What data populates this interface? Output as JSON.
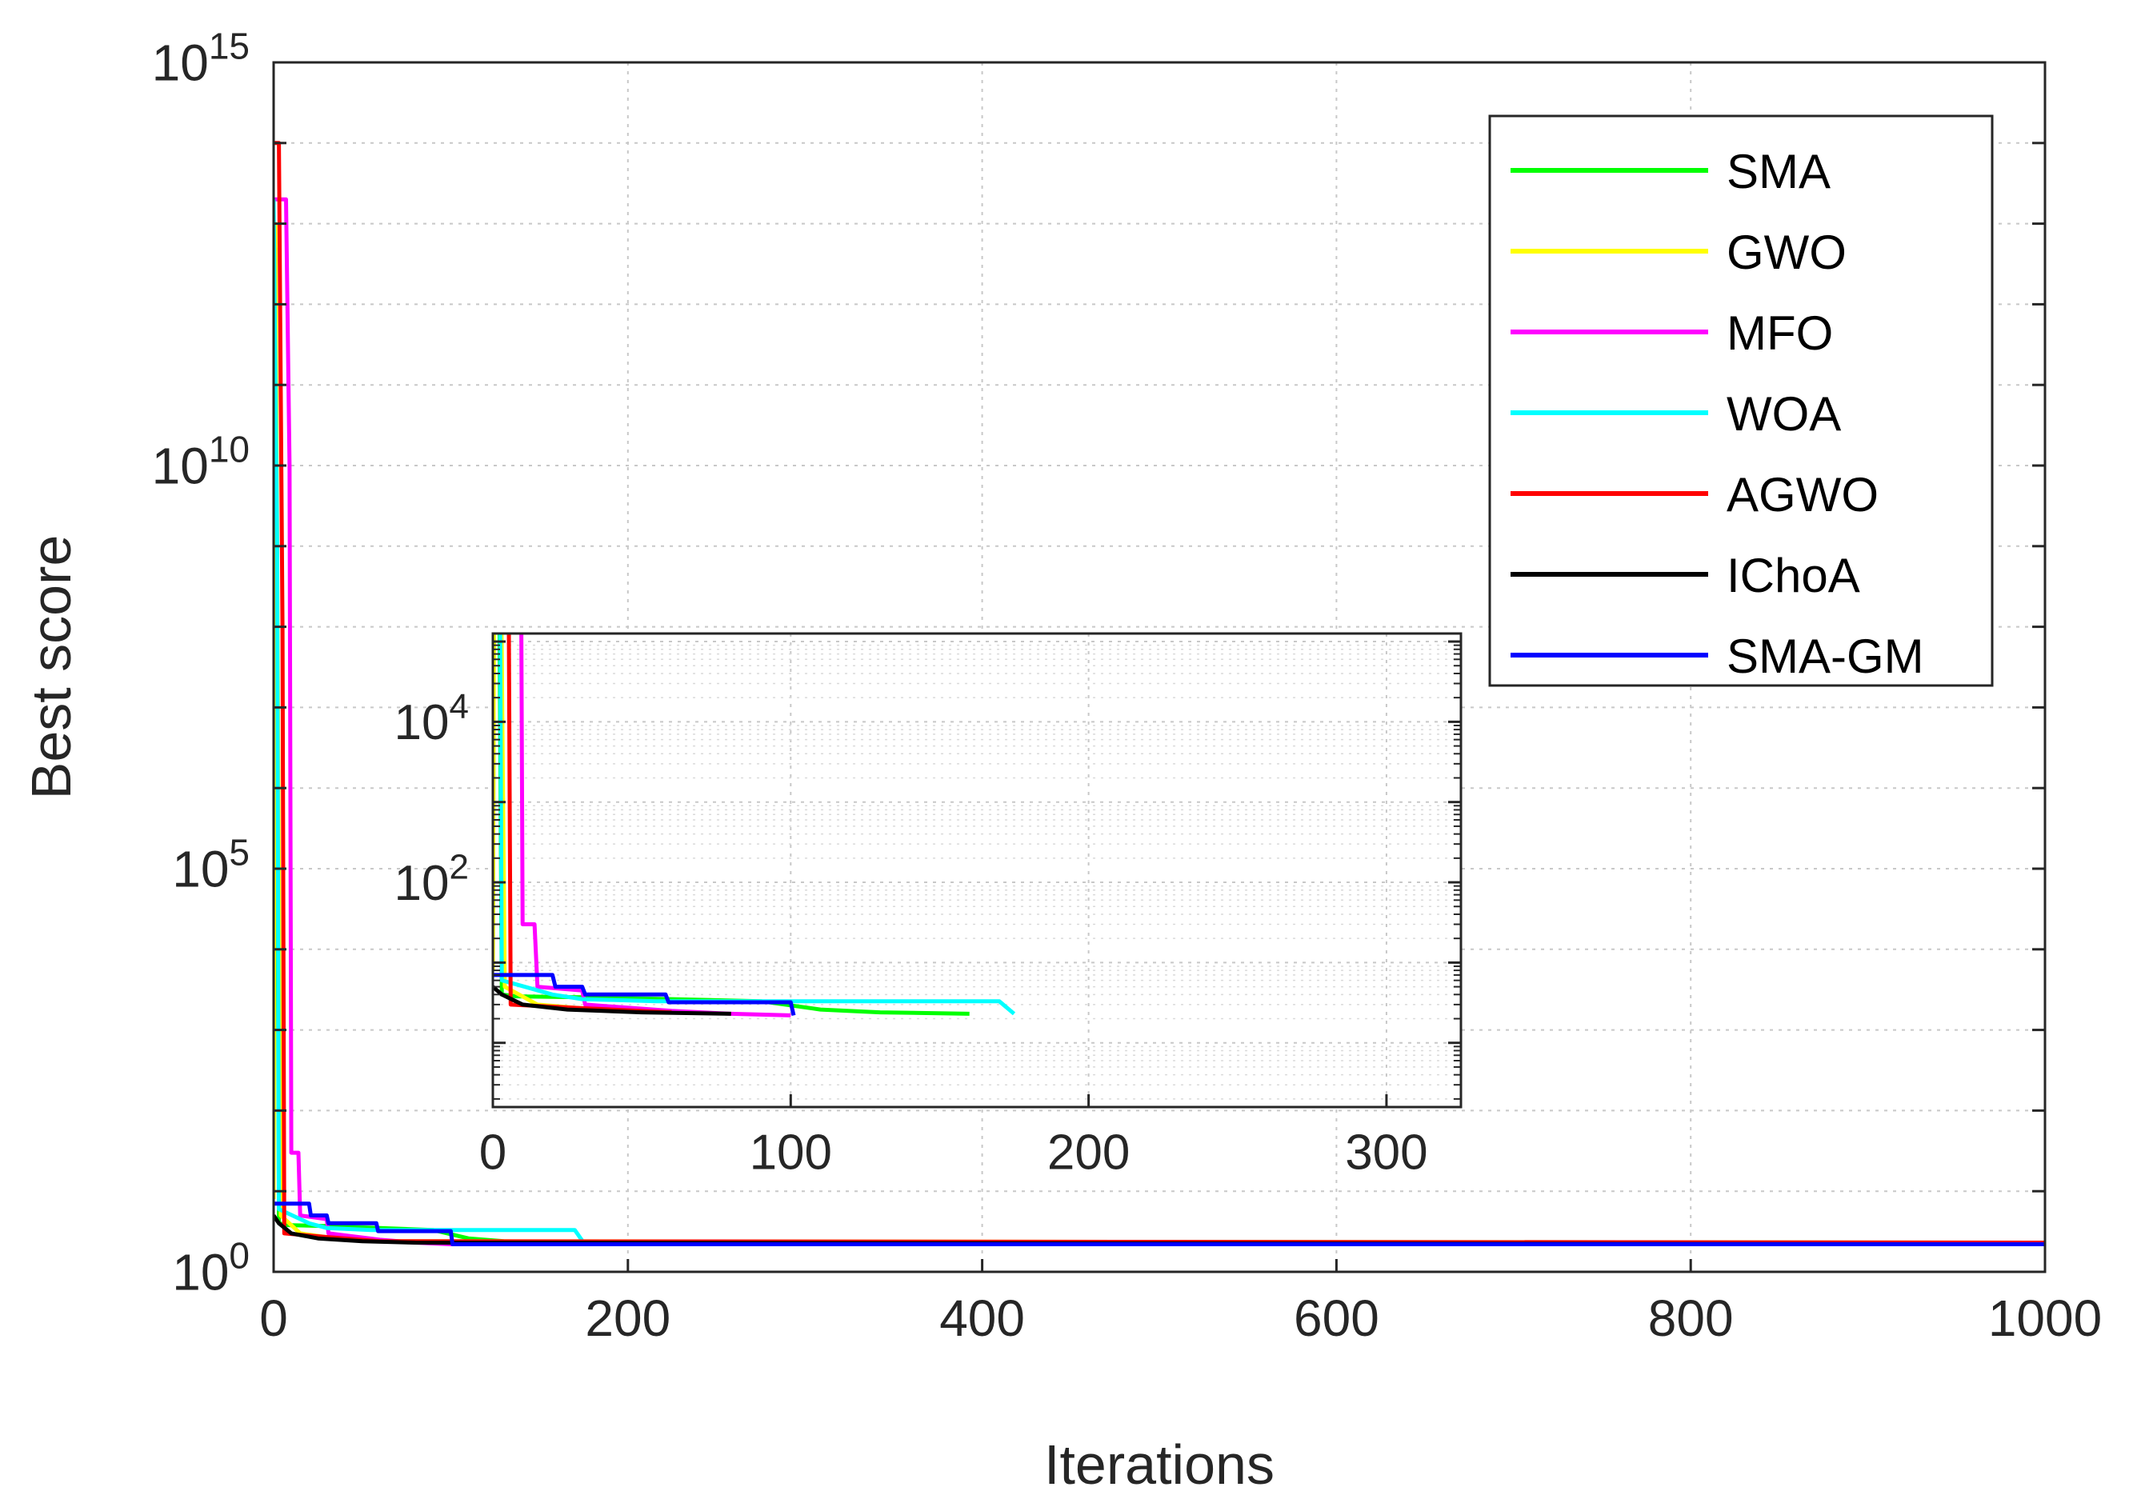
{
  "chart_data": [
    {
      "name": "main",
      "type": "line",
      "xscale": "linear",
      "yscale": "log",
      "xlim": [
        0,
        1000
      ],
      "ylim_log10": [
        0,
        15
      ],
      "xticks": [
        0,
        200,
        400,
        600,
        800,
        1000
      ],
      "xtick_labels": [
        "0",
        "200",
        "400",
        "600",
        "800",
        "1000"
      ],
      "yticks": [
        {
          "base": "10",
          "exp": "0"
        },
        {
          "base": "10",
          "exp": "5"
        },
        {
          "base": "10",
          "exp": "10"
        },
        {
          "base": "10",
          "exp": "15"
        }
      ],
      "xlabel": "Iterations",
      "ylabel": "Best score",
      "grid": true,
      "legend_position": "top-right",
      "series": [
        {
          "name": "SMA",
          "color": "#00ff00",
          "points": [
            [
              0,
              12
            ],
            [
              1,
              5000000000000.0
            ],
            [
              3,
              4
            ],
            [
              8,
              3.8
            ],
            [
              30,
              3.7
            ],
            [
              60,
              3.5
            ],
            [
              90,
              3.3
            ],
            [
              110,
              2.6
            ],
            [
              130,
              2.4
            ],
            [
              160,
              2.3
            ],
            [
              1000,
              2.2
            ]
          ]
        },
        {
          "name": "GWO",
          "color": "#ffff00",
          "points": [
            [
              0,
              8
            ],
            [
              1,
              10000000000000.0
            ],
            [
              2,
              1000000000.0
            ],
            [
              4,
              5
            ],
            [
              15,
              3
            ],
            [
              40,
              2.5
            ],
            [
              70,
              2.4
            ],
            [
              1000,
              2.3
            ]
          ]
        },
        {
          "name": "MFO",
          "color": "#ff00ff",
          "points": [
            [
              0,
              20000000000000.0
            ],
            [
              7,
              20000000000000.0
            ],
            [
              9,
              10000000000.0
            ],
            [
              10,
              30
            ],
            [
              14,
              30
            ],
            [
              15,
              5
            ],
            [
              30,
              4.5
            ],
            [
              31,
              3
            ],
            [
              60,
              2.5
            ],
            [
              80,
              2.3
            ],
            [
              100,
              2.2
            ],
            [
              1000,
              2.2
            ]
          ]
        },
        {
          "name": "WOA",
          "color": "#00ffff",
          "points": [
            [
              0,
              20000000000000.0
            ],
            [
              2,
              1000000000.0
            ],
            [
              3,
              6
            ],
            [
              20,
              4
            ],
            [
              30,
              3.5
            ],
            [
              55,
              3.3
            ],
            [
              170,
              3.3
            ],
            [
              175,
              2.3
            ],
            [
              1000,
              2.2
            ]
          ]
        },
        {
          "name": "AGWO",
          "color": "#ff0000",
          "points": [
            [
              0,
              100000000000000.0
            ],
            [
              3,
              100000000000000.0
            ],
            [
              5,
              100000000.0
            ],
            [
              6,
              3
            ],
            [
              30,
              2.7
            ],
            [
              60,
              2.4
            ],
            [
              1000,
              2.3
            ]
          ]
        },
        {
          "name": "IChoA",
          "color": "#000000",
          "points": [
            [
              0,
              5
            ],
            [
              3,
              4
            ],
            [
              10,
              3
            ],
            [
              25,
              2.6
            ],
            [
              50,
              2.4
            ],
            [
              80,
              2.3
            ],
            [
              1000,
              2.2
            ]
          ]
        },
        {
          "name": "SMA-GM",
          "color": "#0000ff",
          "points": [
            [
              0,
              7
            ],
            [
              5,
              7
            ],
            [
              20,
              7
            ],
            [
              21,
              5
            ],
            [
              30,
              5
            ],
            [
              31,
              4
            ],
            [
              58,
              4
            ],
            [
              59,
              3.2
            ],
            [
              100,
              3.2
            ],
            [
              101,
              2.2
            ],
            [
              1000,
              2.2
            ]
          ]
        }
      ]
    },
    {
      "name": "inset",
      "type": "line",
      "xscale": "linear",
      "yscale": "log",
      "xlim": [
        0,
        325
      ],
      "ylim_log10": [
        -0.8,
        5.1
      ],
      "xticks": [
        0,
        100,
        200,
        300
      ],
      "xtick_labels": [
        "0",
        "100",
        "200",
        "300"
      ],
      "yticks": [
        {
          "base": "10",
          "exp": "2"
        },
        {
          "base": "10",
          "exp": "4"
        }
      ],
      "grid": true
    }
  ],
  "legend": {
    "entries": [
      "SMA",
      "GWO",
      "MFO",
      "WOA",
      "AGWO",
      "IChoA",
      "SMA-GM"
    ]
  }
}
